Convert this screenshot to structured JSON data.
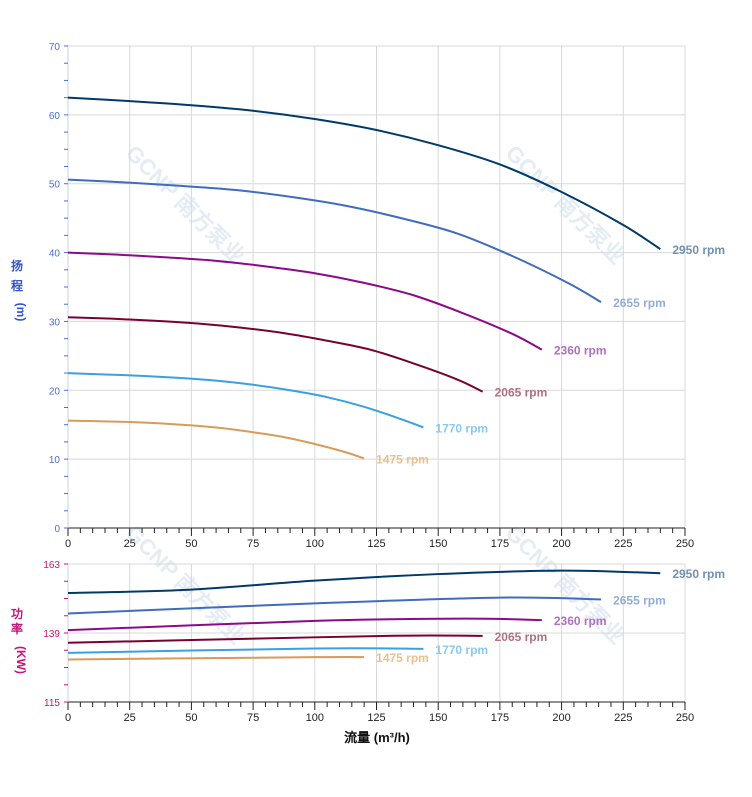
{
  "watermark": "GCNP 南方泵业",
  "chart_data": [
    {
      "type": "line",
      "ylabel_chars": [
        "扬",
        "程",
        "(m)"
      ],
      "ylim": [
        0,
        70
      ],
      "yticks": [
        0,
        10,
        20,
        30,
        40,
        50,
        60,
        70
      ],
      "xlim": [
        0,
        250
      ],
      "xticks": [
        0,
        25,
        50,
        75,
        100,
        125,
        150,
        175,
        200,
        225,
        250
      ],
      "grid": true,
      "series": [
        {
          "name": "2950 rpm",
          "color": "#003a6b",
          "label_color": "#7390b0",
          "x": [
            0,
            25,
            50,
            75,
            100,
            125,
            150,
            175,
            200,
            225,
            240
          ],
          "y": [
            62.5,
            62.0,
            61.4,
            60.6,
            59.4,
            57.8,
            55.6,
            52.8,
            48.8,
            44.0,
            40.5
          ]
        },
        {
          "name": "2655 rpm",
          "color": "#3f6cbf",
          "label_color": "#95acd8",
          "x": [
            0,
            22.5,
            45,
            67.5,
            90,
            112.5,
            135,
            157.5,
            180,
            202.5,
            216
          ],
          "y": [
            50.6,
            50.2,
            49.7,
            49.1,
            48.1,
            46.8,
            45.0,
            42.8,
            39.5,
            35.6,
            32.8
          ]
        },
        {
          "name": "2360 rpm",
          "color": "#8b0a8b",
          "label_color": "#b070c0",
          "x": [
            0,
            20,
            40,
            60,
            80,
            100,
            120,
            140,
            160,
            180,
            192
          ],
          "y": [
            40.0,
            39.7,
            39.3,
            38.8,
            38.0,
            37.0,
            35.6,
            33.8,
            31.2,
            28.2,
            25.9
          ]
        },
        {
          "name": "2065 rpm",
          "color": "#7a0030",
          "label_color": "#b07080",
          "x": [
            0,
            17.5,
            35,
            52.5,
            70,
            87.5,
            105,
            122.5,
            140,
            157.5,
            168
          ],
          "y": [
            30.6,
            30.4,
            30.1,
            29.7,
            29.1,
            28.3,
            27.2,
            25.9,
            23.9,
            21.6,
            19.8
          ]
        },
        {
          "name": "1770 rpm",
          "color": "#3aa0e0",
          "label_color": "#8cc8f0",
          "x": [
            0,
            15,
            30,
            45,
            60,
            75,
            90,
            105,
            120,
            135,
            144
          ],
          "y": [
            22.5,
            22.3,
            22.1,
            21.8,
            21.4,
            20.8,
            20.0,
            19.0,
            17.6,
            15.8,
            14.6
          ]
        },
        {
          "name": "1475 rpm",
          "color": "#d99a5a",
          "label_color": "#e8c090",
          "x": [
            0,
            12.5,
            25,
            37.5,
            50,
            62.5,
            75,
            87.5,
            100,
            112.5,
            120
          ],
          "y": [
            15.6,
            15.5,
            15.4,
            15.2,
            14.9,
            14.5,
            13.9,
            13.2,
            12.2,
            11.0,
            10.1
          ]
        }
      ]
    },
    {
      "type": "line",
      "ylabel_chars": [
        "功",
        "率",
        "(KW)"
      ],
      "xlabel": "流量 (m³/h)",
      "ylim": [
        115,
        163
      ],
      "yticks": [
        115,
        139,
        163
      ],
      "xlim": [
        0,
        250
      ],
      "xticks": [
        0,
        25,
        50,
        75,
        100,
        125,
        150,
        175,
        200,
        225,
        250
      ],
      "grid": true,
      "series": [
        {
          "name": "2950 rpm",
          "color": "#003a6b",
          "label_color": "#7390b0",
          "x": [
            0,
            50,
            100,
            150,
            200,
            240
          ],
          "y": [
            152.9,
            154.1,
            157.2,
            159.5,
            160.7,
            159.8
          ]
        },
        {
          "name": "2655 rpm",
          "color": "#3f6cbf",
          "label_color": "#95acd8",
          "x": [
            0,
            100,
            175,
            216
          ],
          "y": [
            145.8,
            149.3,
            151.3,
            150.7
          ]
        },
        {
          "name": "2360 rpm",
          "color": "#8b0a8b",
          "label_color": "#b070c0",
          "x": [
            0,
            100,
            160,
            192
          ],
          "y": [
            140.0,
            143.2,
            144.0,
            143.5
          ]
        },
        {
          "name": "2065 rpm",
          "color": "#7a0030",
          "label_color": "#b07080",
          "x": [
            0,
            100,
            140,
            168
          ],
          "y": [
            135.6,
            137.5,
            138.1,
            138.0
          ]
        },
        {
          "name": "1770 rpm",
          "color": "#3aa0e0",
          "label_color": "#8cc8f0",
          "x": [
            0,
            100,
            144
          ],
          "y": [
            132.1,
            133.6,
            133.5
          ]
        },
        {
          "name": "1475 rpm",
          "color": "#d99a5a",
          "label_color": "#e8c090",
          "x": [
            0,
            100,
            120
          ],
          "y": [
            129.8,
            130.6,
            130.6
          ]
        }
      ]
    }
  ]
}
